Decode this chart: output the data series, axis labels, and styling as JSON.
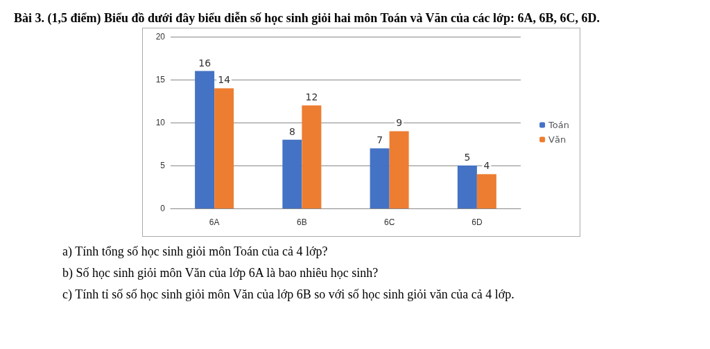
{
  "chart_data": {
    "type": "bar",
    "title": "Bài 3. (1,5 điểm) Biểu đồ dưới đây biểu diễn số học sinh giỏi hai môn Toán và Văn của các lớp: 6A, 6B, 6C, 6D.",
    "categories": [
      "6A",
      "6B",
      "6C",
      "6D"
    ],
    "series": [
      {
        "name": "Toán",
        "color": "#4472c4",
        "values": [
          16,
          8,
          7,
          5
        ]
      },
      {
        "name": "Văn",
        "color": "#ed7d31",
        "values": [
          14,
          12,
          9,
          4
        ]
      }
    ],
    "ylim": [
      0,
      20
    ],
    "yticks": [
      0,
      5,
      10,
      15,
      20
    ],
    "grid": "y",
    "legend": "right",
    "data_labels": true,
    "annotations": [
      "a) Tính tổng số học sinh giỏi môn Toán của cả 4 lớp?",
      "b) Số học sinh giỏi môn Văn của lớp 6A là bao nhiêu học sinh?",
      "c) Tính tỉ số số học sinh giỏi môn Văn của lớp 6B so với số học sinh giỏi văn của cả 4 lớp."
    ]
  }
}
